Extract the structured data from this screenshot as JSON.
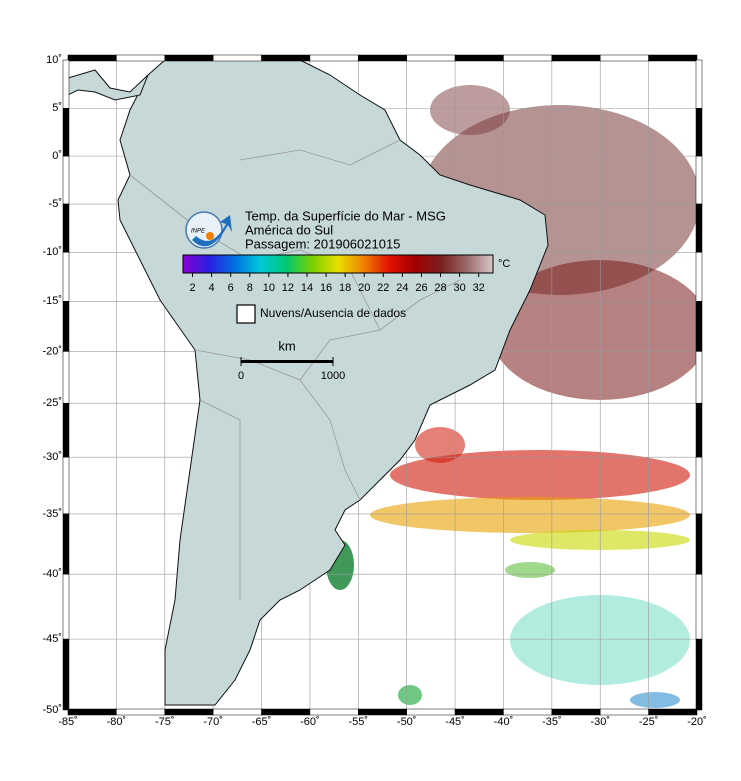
{
  "header": {
    "title": "Temp. da Superfície do Mar - MSG",
    "region": "América do Sul",
    "pass": "Passagem: 201906021015",
    "logo": "INPE"
  },
  "colorbar": {
    "lim": [
      1,
      33.5
    ],
    "ticks": [
      2,
      4,
      6,
      8,
      10,
      12,
      14,
      16,
      18,
      20,
      22,
      24,
      26,
      28,
      30,
      32
    ],
    "unit": "°C",
    "colors": [
      "#8a00d4",
      "#2a1fe0",
      "#0070e0",
      "#00c8d8",
      "#00c870",
      "#7ad000",
      "#e8e000",
      "#f08000",
      "#e01000",
      "#a00000",
      "#7a2020",
      "#9a6a6a",
      "#d8c8c8"
    ]
  },
  "legend": {
    "label": "Nuvens/Ausencia de dados"
  },
  "scale_bar": {
    "unit": "km",
    "ticks": [
      0,
      1000
    ]
  },
  "map": {
    "xlim": [
      -85,
      -20
    ],
    "ylim": [
      -50,
      10
    ],
    "grid": true,
    "xticks": [
      {
        "value": -85,
        "label": "-85˚"
      },
      {
        "value": -80,
        "label": "-80˚"
      },
      {
        "value": -75,
        "label": "-75˚"
      },
      {
        "value": -70,
        "label": "-70˚"
      },
      {
        "value": -65,
        "label": "-65˚"
      },
      {
        "value": -60,
        "label": "-60˚"
      },
      {
        "value": -55,
        "label": "-55˚"
      },
      {
        "value": -50,
        "label": "-50˚"
      },
      {
        "value": -45,
        "label": "-45˚"
      },
      {
        "value": -40,
        "label": "-40˚"
      },
      {
        "value": -35,
        "label": "-35˚"
      },
      {
        "value": -30,
        "label": "-30˚"
      },
      {
        "value": -25,
        "label": "-25˚"
      },
      {
        "value": -20,
        "label": "-20˚"
      }
    ],
    "yticks": [
      {
        "value": 10,
        "label": "10˚"
      },
      {
        "value": 5,
        "label": "5˚"
      },
      {
        "value": 0,
        "label": "0˚"
      },
      {
        "value": -5,
        "label": "-5˚"
      },
      {
        "value": -10,
        "label": "-10˚"
      },
      {
        "value": -15,
        "label": "-15˚"
      },
      {
        "value": -20,
        "label": "-20˚"
      },
      {
        "value": -25,
        "label": "-25˚"
      },
      {
        "value": -30,
        "label": "-30˚"
      },
      {
        "value": -35,
        "label": "-35˚"
      },
      {
        "value": -40,
        "label": "-40˚"
      },
      {
        "value": -45,
        "label": "-45˚"
      },
      {
        "value": -50,
        "label": "-50˚"
      }
    ]
  }
}
